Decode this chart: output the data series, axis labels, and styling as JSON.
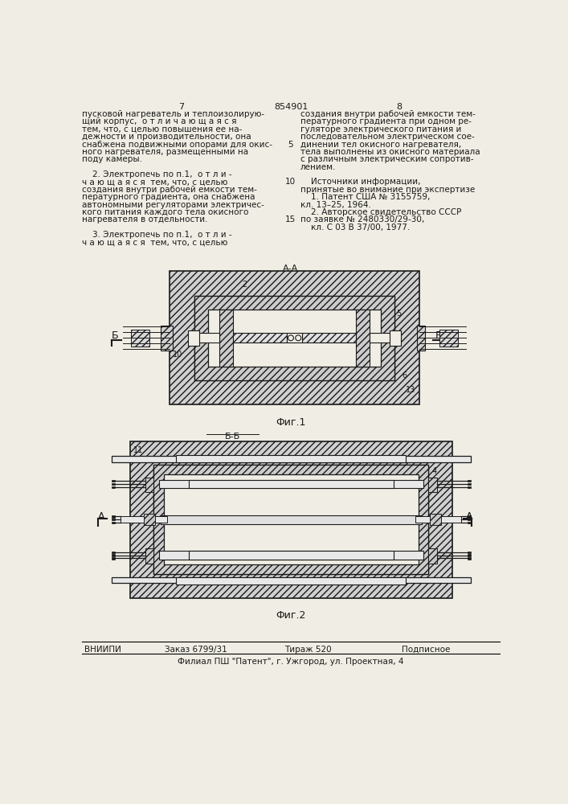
{
  "page_color": "#f0ede4",
  "text_color": "#1a1a1a",
  "page_number_left": "7",
  "page_number_center": "854901",
  "page_number_right": "8",
  "col_left_lines": [
    "пусковой нагреватель и теплоизолирую-",
    "щий корпус,  о т л и ч а ю щ а я с я",
    "тем, что, с целью повышения ее на-",
    "дежности и производительности, она",
    "снабжена подвижными опорами для окис-",
    "ного нагревателя, размещенными на",
    "поду камеры.",
    "",
    "    2. Электропечь по п.1,  о т л и -",
    "ч а ю щ а я с я  тем, что, с целью",
    "создания внутри рабочей емкости тем-",
    "пературного градиента, она снабжена",
    "автономными регуляторами электричес-",
    "кого питания каждого тела окисного",
    "нагревателя в отдельности.",
    "",
    "    3. Электропечь по п.1,  о т л и -",
    "ч а ю щ а я с я  тем, что, с целью"
  ],
  "col_right_lines": [
    "создания внутри рабочей емкости тем-",
    "пературного градиента при одном ре-",
    "гуляторе электрического питания и",
    "последовательном электрическом сое-",
    "динении тел окисного нагревателя,",
    "тела выполнены из окисного материала",
    "с различным электрическим сопротив-",
    "лением.",
    "",
    "    Источники информации,",
    "принятые во внимание при экспертизе",
    "    1. Патент США № 3155759,",
    "кл. 13–25, 1964.",
    "    2. Авторское свидетельство СССР",
    "по заявке № 2480330/29-30,",
    "    кл. С 03 В 37/00, 1977."
  ],
  "line_number_5": "5",
  "line_number_10": "10",
  "line_number_15": "15",
  "fig1_label": "Фиг.1",
  "fig2_label": "Фиг.2",
  "section_aa": "А-А",
  "section_bb": "Б-Б",
  "label_b_left1": "Б",
  "label_b_right1": "Б",
  "label_a_left2": "А",
  "label_a_right2": "А",
  "footer_org": "ВНИИПИ",
  "footer_order": "Заказ 6799/31",
  "footer_copies": "Тираж 520",
  "footer_sign": "Подписное",
  "footer_branch": "Филиал ПШ \"Патент\", г. Ужгород, ул. Проектная, 4",
  "line_color": "#1a1a1a"
}
